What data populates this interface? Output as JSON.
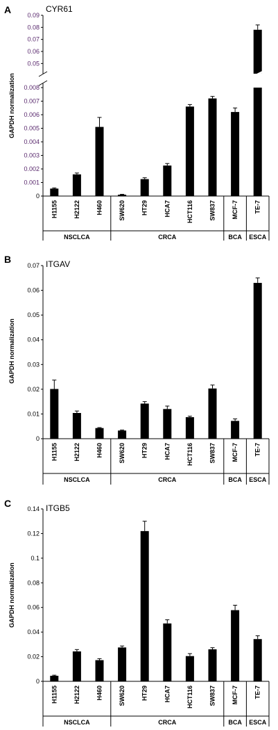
{
  "chart_data": [
    {
      "type": "bar",
      "panel": "A",
      "title": "CYR61",
      "ylabel": "GAPDH normalization",
      "axis_break": true,
      "lower_ylim": [
        0,
        0.008
      ],
      "upper_ylim": [
        0.045,
        0.09
      ],
      "yticks_lower": [
        "0",
        "0.001",
        "0.002",
        "0.003",
        "0.004",
        "0.005",
        "0.006",
        "0.007",
        "0.008"
      ],
      "yticks_upper": [
        "0.05",
        "0.06",
        "0.07",
        "0.08",
        "0.09"
      ],
      "categories": [
        "H1155",
        "H2122",
        "H460",
        "SW620",
        "HT29",
        "HCA7",
        "HCT116",
        "SW837",
        "MCF-7",
        "TE-7"
      ],
      "values": [
        0.00055,
        0.0016,
        0.0051,
        0.0001,
        0.00125,
        0.00225,
        0.0066,
        0.0072,
        0.0062,
        0.078
      ],
      "errors": [
        5e-05,
        0.0001,
        0.0007,
        3e-05,
        0.0001,
        0.00015,
        0.00015,
        0.00015,
        0.0003,
        0.004
      ],
      "groups": [
        {
          "label": "NSCLCA",
          "count": 3
        },
        {
          "label": "CRCA",
          "count": 5
        },
        {
          "label": "BCA",
          "count": 1
        },
        {
          "label": "ESCA",
          "count": 1
        }
      ]
    },
    {
      "type": "bar",
      "panel": "B",
      "title": "ITGAV",
      "ylabel": "GAPDH normalization",
      "ylim": [
        0,
        0.07
      ],
      "yticks": [
        "0",
        "0.01",
        "0.02",
        "0.03",
        "0.04",
        "0.05",
        "0.06",
        "0.07"
      ],
      "categories": [
        "H1155",
        "H2122",
        "H460",
        "SW620",
        "HT29",
        "HCA7",
        "HCT116",
        "SW837",
        "MCF-7",
        "TE-7"
      ],
      "values": [
        0.0201,
        0.0104,
        0.0043,
        0.0033,
        0.0142,
        0.012,
        0.0087,
        0.0203,
        0.0072,
        0.063
      ],
      "errors": [
        0.0036,
        0.0008,
        0.0002,
        0.0002,
        0.0008,
        0.0012,
        0.0004,
        0.0014,
        0.0008,
        0.002
      ],
      "groups": [
        {
          "label": "NSCLCA",
          "count": 3
        },
        {
          "label": "CRCA",
          "count": 5
        },
        {
          "label": "BCA",
          "count": 1
        },
        {
          "label": "ESCA",
          "count": 1
        }
      ]
    },
    {
      "type": "bar",
      "panel": "C",
      "title": "ITGB5",
      "ylabel": "GAPDH normalization",
      "ylim": [
        0,
        0.14
      ],
      "yticks": [
        "0",
        "0.02",
        "0.04",
        "0.06",
        "0.08",
        "0.1",
        "0.12",
        "0.14"
      ],
      "categories": [
        "H1155",
        "H2122",
        "H460",
        "SW620",
        "HT29",
        "HCA7",
        "HCT116",
        "SW837",
        "MCF-7",
        "TE-7"
      ],
      "values": [
        0.0045,
        0.0243,
        0.0172,
        0.0275,
        0.122,
        0.047,
        0.0205,
        0.026,
        0.0578,
        0.0343
      ],
      "errors": [
        0.0005,
        0.0015,
        0.0012,
        0.0012,
        0.008,
        0.003,
        0.002,
        0.0013,
        0.004,
        0.0027
      ],
      "groups": [
        {
          "label": "NSCLCA",
          "count": 3
        },
        {
          "label": "CRCA",
          "count": 5
        },
        {
          "label": "BCA",
          "count": 1
        },
        {
          "label": "ESCA",
          "count": 1
        }
      ]
    }
  ]
}
